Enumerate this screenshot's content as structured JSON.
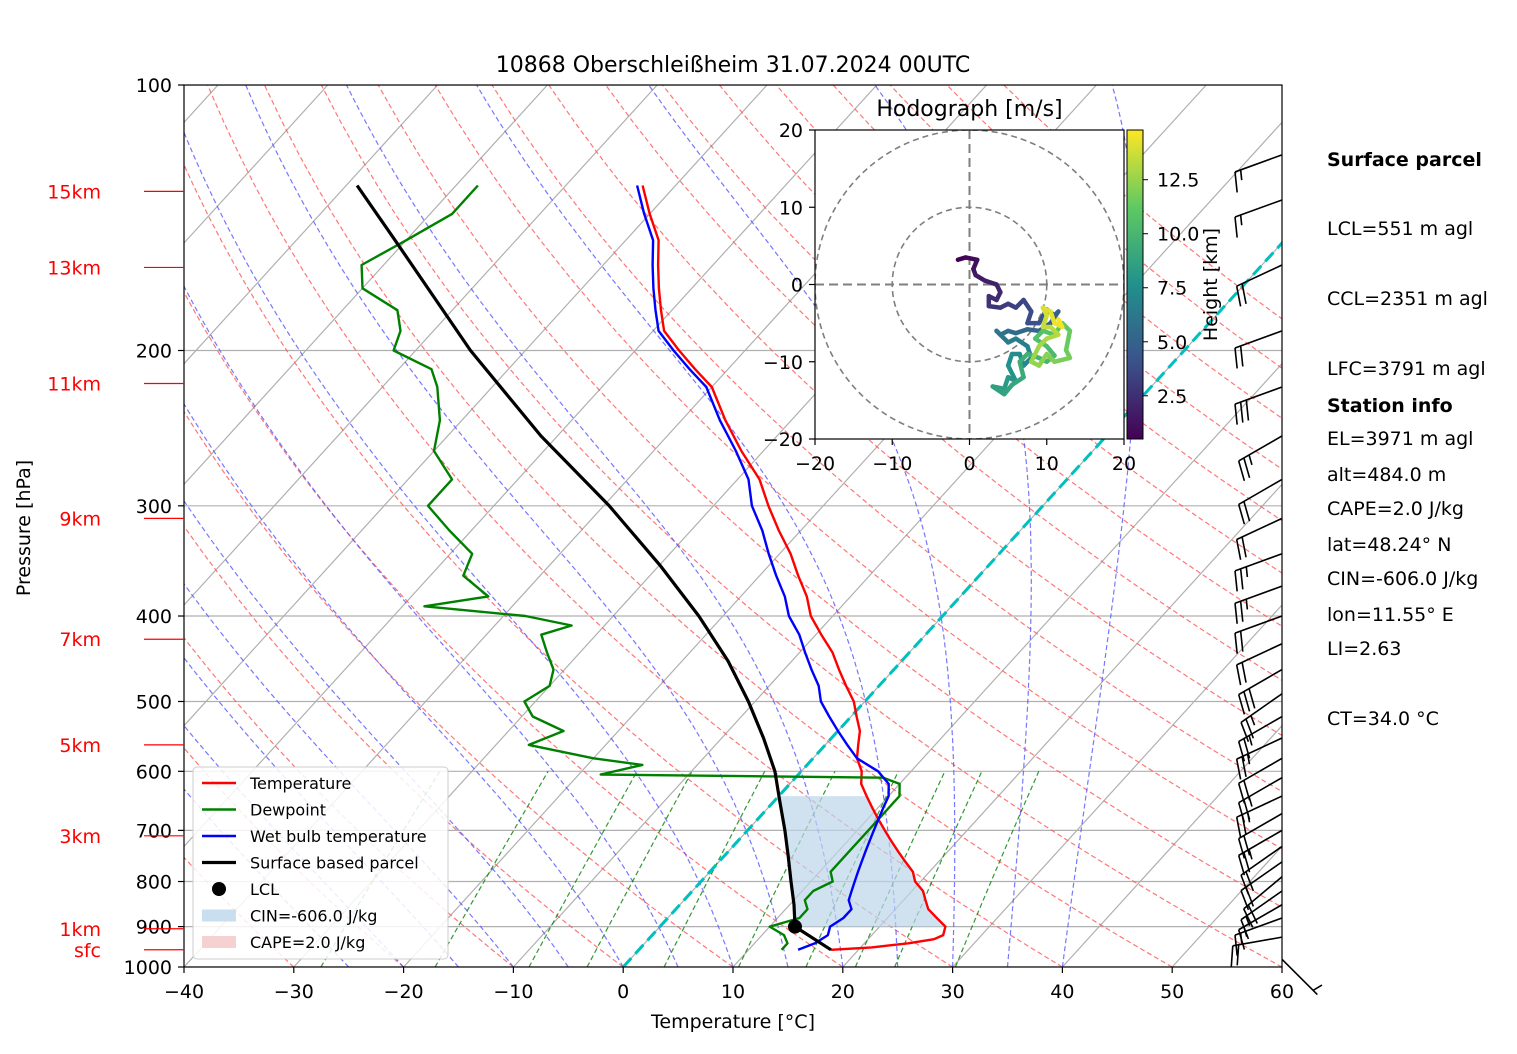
{
  "title": "10868 Oberschleißheim 31.07.2024 00UTC",
  "chart_data": {
    "type": "line",
    "subtype": "skew-T log-p diagram",
    "title": "10868 Oberschleißheim 31.07.2024 00UTC",
    "xlabel": "Temperature [°C]",
    "ylabel": "Pressure [hPa]",
    "xlim": [
      -40,
      60
    ],
    "ylim": [
      1000,
      100
    ],
    "y_scale": "log",
    "grid": true,
    "x_ticks": [
      "−40",
      "−30",
      "−20",
      "−10",
      "0",
      "10",
      "20",
      "30",
      "40",
      "50",
      "60"
    ],
    "y_ticks": [
      "100",
      "200",
      "300",
      "400",
      "500",
      "600",
      "700",
      "800",
      "900",
      "1000"
    ],
    "height_labels": [
      {
        "label": "15km",
        "p": 132
      },
      {
        "label": "13km",
        "p": 161
      },
      {
        "label": "11km",
        "p": 218
      },
      {
        "label": "9km",
        "p": 310
      },
      {
        "label": "7km",
        "p": 425
      },
      {
        "label": "5km",
        "p": 560
      },
      {
        "label": "3km",
        "p": 710
      },
      {
        "label": "1km",
        "p": 905
      },
      {
        "label": "sfc",
        "p": 956
      }
    ],
    "series": [
      {
        "name": "Temperature",
        "color": "#ff0000",
        "points": [
          [
            956,
            17.5
          ],
          [
            950,
            21
          ],
          [
            940,
            24
          ],
          [
            930,
            26
          ],
          [
            920,
            26.5
          ],
          [
            900,
            26
          ],
          [
            880,
            24.5
          ],
          [
            860,
            23
          ],
          [
            840,
            22
          ],
          [
            820,
            21
          ],
          [
            800,
            19.5
          ],
          [
            780,
            18.5
          ],
          [
            760,
            17
          ],
          [
            740,
            15.5
          ],
          [
            720,
            14
          ],
          [
            700,
            12.5
          ],
          [
            680,
            11
          ],
          [
            660,
            9.5
          ],
          [
            640,
            8
          ],
          [
            620,
            6.5
          ],
          [
            600,
            5.5
          ],
          [
            580,
            4
          ],
          [
            560,
            3
          ],
          [
            540,
            2
          ],
          [
            520,
            0.5
          ],
          [
            500,
            -1
          ],
          [
            480,
            -3
          ],
          [
            460,
            -5
          ],
          [
            440,
            -7
          ],
          [
            420,
            -9.5
          ],
          [
            400,
            -12
          ],
          [
            380,
            -14
          ],
          [
            360,
            -16.5
          ],
          [
            340,
            -19
          ],
          [
            320,
            -22
          ],
          [
            300,
            -25
          ],
          [
            280,
            -28
          ],
          [
            260,
            -32
          ],
          [
            240,
            -36
          ],
          [
            220,
            -40
          ],
          [
            210,
            -43
          ],
          [
            200,
            -46
          ],
          [
            190,
            -49
          ],
          [
            180,
            -51
          ],
          [
            170,
            -53
          ],
          [
            160,
            -55
          ],
          [
            150,
            -57
          ],
          [
            140,
            -60
          ],
          [
            130,
            -63
          ]
        ]
      },
      {
        "name": "Dewpoint",
        "color": "#008000",
        "points": [
          [
            956,
            13
          ],
          [
            940,
            13
          ],
          [
            920,
            12
          ],
          [
            900,
            10
          ],
          [
            880,
            12
          ],
          [
            860,
            12
          ],
          [
            840,
            11
          ],
          [
            820,
            11
          ],
          [
            800,
            12
          ],
          [
            780,
            11
          ],
          [
            760,
            11
          ],
          [
            740,
            11
          ],
          [
            720,
            11
          ],
          [
            700,
            11
          ],
          [
            680,
            11
          ],
          [
            660,
            11
          ],
          [
            640,
            11
          ],
          [
            620,
            10
          ],
          [
            610,
            8
          ],
          [
            605,
            -18
          ],
          [
            590,
            -15
          ],
          [
            580,
            -20
          ],
          [
            560,
            -27
          ],
          [
            540,
            -25
          ],
          [
            520,
            -29
          ],
          [
            500,
            -31
          ],
          [
            480,
            -30
          ],
          [
            460,
            -31
          ],
          [
            440,
            -33
          ],
          [
            420,
            -35
          ],
          [
            410,
            -33
          ],
          [
            400,
            -38
          ],
          [
            390,
            -48
          ],
          [
            380,
            -43
          ],
          [
            360,
            -47
          ],
          [
            340,
            -48
          ],
          [
            320,
            -52
          ],
          [
            300,
            -56
          ],
          [
            280,
            -56
          ],
          [
            260,
            -60
          ],
          [
            240,
            -62
          ],
          [
            220,
            -65
          ],
          [
            210,
            -67
          ],
          [
            200,
            -72
          ],
          [
            190,
            -73
          ],
          [
            180,
            -75
          ],
          [
            170,
            -80
          ],
          [
            160,
            -82
          ],
          [
            150,
            -80
          ],
          [
            140,
            -78
          ],
          [
            130,
            -78
          ]
        ]
      },
      {
        "name": "Wet bulb temperature",
        "color": "#0000ff",
        "points": [
          [
            956,
            14.5
          ],
          [
            940,
            15.5
          ],
          [
            920,
            16
          ],
          [
            900,
            15.5
          ],
          [
            880,
            16
          ],
          [
            860,
            16
          ],
          [
            840,
            15
          ],
          [
            820,
            14.5
          ],
          [
            800,
            14
          ],
          [
            780,
            13.5
          ],
          [
            760,
            13
          ],
          [
            740,
            12.5
          ],
          [
            720,
            12
          ],
          [
            700,
            11.5
          ],
          [
            680,
            11
          ],
          [
            660,
            10.5
          ],
          [
            640,
            10
          ],
          [
            620,
            9
          ],
          [
            600,
            7
          ],
          [
            580,
            4
          ],
          [
            560,
            2
          ],
          [
            540,
            0
          ],
          [
            520,
            -2
          ],
          [
            500,
            -4
          ],
          [
            480,
            -5.5
          ],
          [
            460,
            -7.5
          ],
          [
            440,
            -9.5
          ],
          [
            420,
            -11.5
          ],
          [
            400,
            -14
          ],
          [
            380,
            -16
          ],
          [
            360,
            -18.5
          ],
          [
            340,
            -21
          ],
          [
            320,
            -23.5
          ],
          [
            300,
            -26.5
          ],
          [
            280,
            -29
          ],
          [
            260,
            -32.5
          ],
          [
            240,
            -36.5
          ],
          [
            220,
            -40.5
          ],
          [
            210,
            -43.5
          ],
          [
            200,
            -46.5
          ],
          [
            190,
            -49.5
          ],
          [
            180,
            -51.5
          ],
          [
            170,
            -53.5
          ],
          [
            160,
            -55.5
          ],
          [
            150,
            -57.5
          ],
          [
            140,
            -60.5
          ],
          [
            130,
            -63.5
          ]
        ]
      },
      {
        "name": "Surface based parcel",
        "color": "#000000",
        "points": [
          [
            956,
            17.5
          ],
          [
            900,
            12.3
          ],
          [
            850,
            10.4
          ],
          [
            800,
            8.2
          ],
          [
            750,
            5.9
          ],
          [
            700,
            3.4
          ],
          [
            650,
            0.6
          ],
          [
            600,
            -2.4
          ],
          [
            550,
            -6.2
          ],
          [
            500,
            -10.6
          ],
          [
            450,
            -15.8
          ],
          [
            400,
            -22.2
          ],
          [
            350,
            -30
          ],
          [
            300,
            -39.5
          ],
          [
            250,
            -51.5
          ],
          [
            200,
            -65
          ],
          [
            150,
            -81
          ],
          [
            130,
            -89
          ]
        ]
      }
    ],
    "lcl": {
      "name": "LCL",
      "p": 900,
      "t": 12.3
    },
    "shading": [
      {
        "name": "CIN=-606.0 J/kg",
        "color": "#bcd6ea"
      },
      {
        "name": "CAPE=2.0 J/kg",
        "color": "#f2c6c6"
      }
    ],
    "legend": [
      "Temperature",
      "Dewpoint",
      "Wet bulb temperature",
      "Surface based parcel",
      "LCL",
      "CIN=-606.0 J/kg",
      "CAPE=2.0 J/kg"
    ],
    "legend_loc": "lower-left",
    "zero_isotherm_color": "#00bfbf",
    "wind_barbs": [
      {
        "p": 980,
        "dir": 135,
        "speed_kt": 6
      },
      {
        "p": 925,
        "dir": 260,
        "speed_kt": 20
      },
      {
        "p": 880,
        "dir": 250,
        "speed_kt": 15
      },
      {
        "p": 850,
        "dir": 240,
        "speed_kt": 15
      },
      {
        "p": 820,
        "dir": 235,
        "speed_kt": 15
      },
      {
        "p": 790,
        "dir": 230,
        "speed_kt": 20
      },
      {
        "p": 760,
        "dir": 235,
        "speed_kt": 20
      },
      {
        "p": 730,
        "dir": 235,
        "speed_kt": 20
      },
      {
        "p": 700,
        "dir": 240,
        "speed_kt": 25
      },
      {
        "p": 670,
        "dir": 240,
        "speed_kt": 20
      },
      {
        "p": 640,
        "dir": 245,
        "speed_kt": 25
      },
      {
        "p": 610,
        "dir": 240,
        "speed_kt": 25
      },
      {
        "p": 580,
        "dir": 240,
        "speed_kt": 20
      },
      {
        "p": 550,
        "dir": 245,
        "speed_kt": 25
      },
      {
        "p": 520,
        "dir": 240,
        "speed_kt": 25
      },
      {
        "p": 490,
        "dir": 235,
        "speed_kt": 25
      },
      {
        "p": 460,
        "dir": 240,
        "speed_kt": 30
      },
      {
        "p": 430,
        "dir": 245,
        "speed_kt": 20
      },
      {
        "p": 400,
        "dir": 250,
        "speed_kt": 20
      },
      {
        "p": 370,
        "dir": 250,
        "speed_kt": 25
      },
      {
        "p": 340,
        "dir": 250,
        "speed_kt": 25
      },
      {
        "p": 310,
        "dir": 245,
        "speed_kt": 20
      },
      {
        "p": 280,
        "dir": 240,
        "speed_kt": 20
      },
      {
        "p": 250,
        "dir": 240,
        "speed_kt": 25
      },
      {
        "p": 220,
        "dir": 250,
        "speed_kt": 30
      },
      {
        "p": 190,
        "dir": 250,
        "speed_kt": 20
      },
      {
        "p": 160,
        "dir": 245,
        "speed_kt": 20
      },
      {
        "p": 135,
        "dir": 250,
        "speed_kt": 15
      },
      {
        "p": 120,
        "dir": 250,
        "speed_kt": 15
      }
    ]
  },
  "hodograph": {
    "title": "Hodograph [m/s]",
    "xlim": [
      -20,
      20
    ],
    "ylim": [
      -20,
      20
    ],
    "x_ticks": [
      "−20",
      "−10",
      "0",
      "10",
      "20"
    ],
    "y_ticks": [
      "20",
      "10",
      "0",
      "−10",
      "−20"
    ],
    "rings": [
      10,
      20
    ],
    "colorbar": {
      "label": "Height [km]",
      "ticks": [
        "2.5",
        "5.0",
        "7.5",
        "10.0",
        "12.5"
      ],
      "range": [
        0.5,
        14.8
      ],
      "colormap": "viridis"
    },
    "track": [
      [
        -1.5,
        3.2,
        0.5
      ],
      [
        -0.5,
        3.5,
        0.8
      ],
      [
        1,
        3.2,
        1.1
      ],
      [
        0.5,
        2,
        1.4
      ],
      [
        0.8,
        1.2,
        1.6
      ],
      [
        2,
        0.5,
        1.8
      ],
      [
        3.5,
        0,
        2
      ],
      [
        4,
        -1,
        2.2
      ],
      [
        3.5,
        -2,
        2.4
      ],
      [
        2.5,
        -1.5,
        2.6
      ],
      [
        2.5,
        -2.8,
        2.8
      ],
      [
        4,
        -3,
        3
      ],
      [
        5,
        -2.5,
        3.2
      ],
      [
        6,
        -3,
        3.4
      ],
      [
        7,
        -2,
        3.6
      ],
      [
        8,
        -3.5,
        3.8
      ],
      [
        7.5,
        -5,
        4
      ],
      [
        9,
        -5,
        4.2
      ],
      [
        10,
        -3.2,
        4.4
      ],
      [
        11,
        -4,
        4.6
      ],
      [
        11.5,
        -3.5,
        4.8
      ],
      [
        10.5,
        -5,
        5
      ],
      [
        9,
        -6,
        5.2
      ],
      [
        7.5,
        -5.8,
        5.4
      ],
      [
        6,
        -6.3,
        5.6
      ],
      [
        5,
        -6,
        5.8
      ],
      [
        4,
        -6.5,
        6
      ],
      [
        3.5,
        -6,
        6.2
      ],
      [
        5,
        -7.5,
        6.4
      ],
      [
        6,
        -7,
        6.6
      ],
      [
        7.5,
        -8,
        6.8
      ],
      [
        8,
        -9.5,
        7
      ],
      [
        7,
        -10.5,
        7.2
      ],
      [
        6.5,
        -9,
        7.4
      ],
      [
        5.5,
        -9,
        7.6
      ],
      [
        5,
        -10.5,
        7.8
      ],
      [
        6,
        -12.5,
        8
      ],
      [
        5,
        -12,
        8.2
      ],
      [
        4.5,
        -13.5,
        8.4
      ],
      [
        3,
        -13.2,
        8.6
      ],
      [
        4.5,
        -14.2,
        8.8
      ],
      [
        5.5,
        -13,
        9
      ],
      [
        7,
        -12,
        9.2
      ],
      [
        6.5,
        -10,
        9.4
      ],
      [
        7.5,
        -9,
        9.6
      ],
      [
        9,
        -9.5,
        9.8
      ],
      [
        10,
        -10,
        10
      ],
      [
        11,
        -9.2,
        10.2
      ],
      [
        10,
        -8,
        10.4
      ],
      [
        8.5,
        -7,
        10.6
      ],
      [
        9.5,
        -6,
        10.8
      ],
      [
        11,
        -6.5,
        11
      ],
      [
        12,
        -5,
        11.2
      ],
      [
        13,
        -6,
        11.4
      ],
      [
        12.5,
        -8.5,
        11.6
      ],
      [
        13,
        -9.5,
        11.8
      ],
      [
        11,
        -10,
        12
      ],
      [
        10,
        -9,
        12.2
      ],
      [
        9,
        -10.5,
        12.4
      ],
      [
        8,
        -10,
        12.6
      ],
      [
        9,
        -8,
        12.8
      ],
      [
        10,
        -7,
        13
      ],
      [
        11.5,
        -6.5,
        13.2
      ],
      [
        10.5,
        -5.5,
        13.4
      ],
      [
        9.5,
        -5.5,
        13.6
      ],
      [
        10,
        -4,
        13.8
      ],
      [
        9.5,
        -3,
        14
      ],
      [
        10.5,
        -3.5,
        14.2
      ],
      [
        11,
        -5,
        14.4
      ],
      [
        12,
        -5.5,
        14.6
      ],
      [
        11.5,
        -4.5,
        14.8
      ]
    ]
  },
  "surface_parcel": {
    "heading": "Surface parcel",
    "lines": [
      "LCL=551 m agl",
      "CCL=2351 m agl",
      "LFC=3791 m agl",
      "EL=3971 m agl",
      "CAPE=2.0 J/kg",
      "CIN=-606.0 J/kg",
      "LI=2.63",
      "CT=34.0 °C"
    ]
  },
  "station_info": {
    "heading": "Station info",
    "lines": [
      "alt=484.0 m",
      "lat=48.24° N",
      "lon=11.55° E"
    ]
  }
}
